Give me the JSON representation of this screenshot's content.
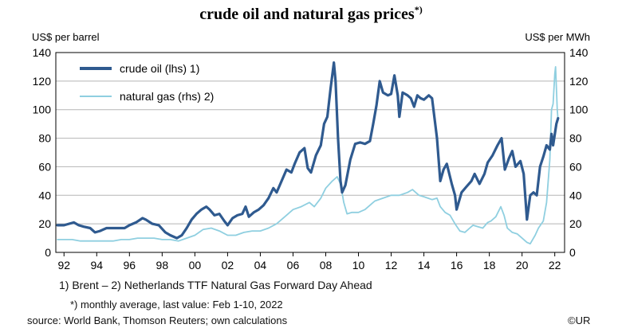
{
  "chart_data": {
    "type": "line",
    "title": "crude oil and natural gas prices",
    "title_superscript": "*)",
    "ylabel_left": "US$ per barrel",
    "ylabel_right": "US$ per MWh",
    "xlim": [
      1991.5,
      2022.6
    ],
    "ylim": [
      0,
      140
    ],
    "y2lim": [
      0,
      140
    ],
    "xticks": [
      {
        "value": 1992,
        "label": "92"
      },
      {
        "value": 1994,
        "label": "94"
      },
      {
        "value": 1996,
        "label": "96"
      },
      {
        "value": 1998,
        "label": "98"
      },
      {
        "value": 2000,
        "label": "00"
      },
      {
        "value": 2002,
        "label": "02"
      },
      {
        "value": 2004,
        "label": "04"
      },
      {
        "value": 2006,
        "label": "06"
      },
      {
        "value": 2008,
        "label": "08"
      },
      {
        "value": 2010,
        "label": "10"
      },
      {
        "value": 2012,
        "label": "12"
      },
      {
        "value": 2014,
        "label": "14"
      },
      {
        "value": 2016,
        "label": "16"
      },
      {
        "value": 2018,
        "label": "18"
      },
      {
        "value": 2020,
        "label": "20"
      },
      {
        "value": 2022,
        "label": "22"
      }
    ],
    "yticks": [
      0,
      20,
      40,
      60,
      80,
      100,
      120,
      140
    ],
    "grid": "horizontal",
    "legend_position": "top-left",
    "series": [
      {
        "name": "crude oil (lhs) 1)",
        "axis": "left",
        "color": "#2f5a8f",
        "points": [
          [
            1991.6,
            19
          ],
          [
            1992.0,
            19
          ],
          [
            1992.3,
            20
          ],
          [
            1992.6,
            21
          ],
          [
            1992.9,
            19
          ],
          [
            1993.2,
            18
          ],
          [
            1993.6,
            17
          ],
          [
            1993.9,
            14
          ],
          [
            1994.2,
            15
          ],
          [
            1994.6,
            17
          ],
          [
            1994.9,
            17
          ],
          [
            1995.3,
            17
          ],
          [
            1995.7,
            17
          ],
          [
            1996.0,
            19
          ],
          [
            1996.4,
            21
          ],
          [
            1996.8,
            24
          ],
          [
            1997.0,
            23
          ],
          [
            1997.4,
            20
          ],
          [
            1997.8,
            19
          ],
          [
            1998.2,
            14
          ],
          [
            1998.5,
            12
          ],
          [
            1998.9,
            10
          ],
          [
            1999.2,
            12
          ],
          [
            1999.5,
            17
          ],
          [
            1999.8,
            23
          ],
          [
            2000.1,
            27
          ],
          [
            2000.4,
            30
          ],
          [
            2000.7,
            32
          ],
          [
            2000.9,
            30
          ],
          [
            2001.2,
            26
          ],
          [
            2001.5,
            27
          ],
          [
            2001.8,
            22
          ],
          [
            2002.0,
            19
          ],
          [
            2002.3,
            24
          ],
          [
            2002.6,
            26
          ],
          [
            2002.9,
            27
          ],
          [
            2003.1,
            32
          ],
          [
            2003.3,
            25
          ],
          [
            2003.6,
            28
          ],
          [
            2003.9,
            30
          ],
          [
            2004.2,
            33
          ],
          [
            2004.5,
            38
          ],
          [
            2004.8,
            45
          ],
          [
            2005.0,
            42
          ],
          [
            2005.3,
            50
          ],
          [
            2005.6,
            58
          ],
          [
            2005.9,
            56
          ],
          [
            2006.1,
            62
          ],
          [
            2006.4,
            70
          ],
          [
            2006.7,
            73
          ],
          [
            2006.9,
            59
          ],
          [
            2007.1,
            56
          ],
          [
            2007.4,
            68
          ],
          [
            2007.7,
            75
          ],
          [
            2007.9,
            90
          ],
          [
            2008.1,
            95
          ],
          [
            2008.3,
            115
          ],
          [
            2008.5,
            133
          ],
          [
            2008.6,
            120
          ],
          [
            2008.75,
            80
          ],
          [
            2008.9,
            50
          ],
          [
            2009.0,
            42
          ],
          [
            2009.2,
            47
          ],
          [
            2009.5,
            65
          ],
          [
            2009.8,
            76
          ],
          [
            2010.1,
            77
          ],
          [
            2010.4,
            76
          ],
          [
            2010.7,
            78
          ],
          [
            2010.9,
            90
          ],
          [
            2011.1,
            103
          ],
          [
            2011.3,
            120
          ],
          [
            2011.5,
            112
          ],
          [
            2011.8,
            110
          ],
          [
            2012.0,
            111
          ],
          [
            2012.2,
            124
          ],
          [
            2012.4,
            110
          ],
          [
            2012.5,
            95
          ],
          [
            2012.7,
            112
          ],
          [
            2013.0,
            110
          ],
          [
            2013.2,
            108
          ],
          [
            2013.4,
            102
          ],
          [
            2013.6,
            110
          ],
          [
            2013.8,
            108
          ],
          [
            2014.0,
            107
          ],
          [
            2014.3,
            110
          ],
          [
            2014.5,
            108
          ],
          [
            2014.8,
            80
          ],
          [
            2015.0,
            50
          ],
          [
            2015.2,
            58
          ],
          [
            2015.4,
            62
          ],
          [
            2015.7,
            48
          ],
          [
            2015.9,
            40
          ],
          [
            2016.0,
            30
          ],
          [
            2016.3,
            42
          ],
          [
            2016.6,
            46
          ],
          [
            2016.9,
            50
          ],
          [
            2017.1,
            55
          ],
          [
            2017.4,
            48
          ],
          [
            2017.7,
            55
          ],
          [
            2017.9,
            63
          ],
          [
            2018.2,
            68
          ],
          [
            2018.5,
            75
          ],
          [
            2018.75,
            80
          ],
          [
            2018.95,
            58
          ],
          [
            2019.2,
            66
          ],
          [
            2019.4,
            71
          ],
          [
            2019.6,
            60
          ],
          [
            2019.9,
            64
          ],
          [
            2020.1,
            55
          ],
          [
            2020.3,
            23
          ],
          [
            2020.5,
            40
          ],
          [
            2020.7,
            42
          ],
          [
            2020.9,
            40
          ],
          [
            2021.1,
            60
          ],
          [
            2021.3,
            67
          ],
          [
            2021.5,
            75
          ],
          [
            2021.7,
            72
          ],
          [
            2021.8,
            83
          ],
          [
            2021.9,
            75
          ],
          [
            2022.1,
            90
          ],
          [
            2022.2,
            94
          ]
        ]
      },
      {
        "name": "natural gas (rhs) 2)",
        "axis": "right",
        "color": "#8fcfe0",
        "points": [
          [
            1991.6,
            9
          ],
          [
            1992.0,
            9
          ],
          [
            1992.5,
            9
          ],
          [
            1993.0,
            8
          ],
          [
            1993.5,
            8
          ],
          [
            1994.0,
            8
          ],
          [
            1994.5,
            8
          ],
          [
            1995.0,
            8
          ],
          [
            1995.5,
            9
          ],
          [
            1996.0,
            9
          ],
          [
            1996.5,
            10
          ],
          [
            1997.0,
            10
          ],
          [
            1997.5,
            10
          ],
          [
            1998.0,
            9
          ],
          [
            1998.5,
            9
          ],
          [
            1999.0,
            8
          ],
          [
            1999.5,
            10
          ],
          [
            2000.0,
            12
          ],
          [
            2000.5,
            16
          ],
          [
            2001.0,
            17
          ],
          [
            2001.5,
            15
          ],
          [
            2002.0,
            12
          ],
          [
            2002.5,
            12
          ],
          [
            2003.0,
            14
          ],
          [
            2003.5,
            15
          ],
          [
            2004.0,
            15
          ],
          [
            2004.5,
            17
          ],
          [
            2005.0,
            20
          ],
          [
            2005.5,
            25
          ],
          [
            2006.0,
            30
          ],
          [
            2006.5,
            32
          ],
          [
            2007.0,
            35
          ],
          [
            2007.3,
            32
          ],
          [
            2007.7,
            38
          ],
          [
            2008.0,
            45
          ],
          [
            2008.4,
            50
          ],
          [
            2008.7,
            53
          ],
          [
            2008.9,
            48
          ],
          [
            2009.1,
            35
          ],
          [
            2009.3,
            27
          ],
          [
            2009.6,
            28
          ],
          [
            2010.0,
            28
          ],
          [
            2010.4,
            30
          ],
          [
            2010.7,
            33
          ],
          [
            2011.0,
            36
          ],
          [
            2011.5,
            38
          ],
          [
            2012.0,
            40
          ],
          [
            2012.5,
            40
          ],
          [
            2013.0,
            42
          ],
          [
            2013.3,
            44
          ],
          [
            2013.7,
            40
          ],
          [
            2014.0,
            39
          ],
          [
            2014.5,
            37
          ],
          [
            2014.8,
            38
          ],
          [
            2015.0,
            32
          ],
          [
            2015.3,
            28
          ],
          [
            2015.6,
            26
          ],
          [
            2015.9,
            20
          ],
          [
            2016.2,
            15
          ],
          [
            2016.5,
            14
          ],
          [
            2016.8,
            17
          ],
          [
            2017.0,
            19
          ],
          [
            2017.3,
            18
          ],
          [
            2017.6,
            17
          ],
          [
            2017.9,
            21
          ],
          [
            2018.1,
            22
          ],
          [
            2018.4,
            25
          ],
          [
            2018.7,
            32
          ],
          [
            2018.9,
            26
          ],
          [
            2019.1,
            17
          ],
          [
            2019.4,
            14
          ],
          [
            2019.7,
            13
          ],
          [
            2020.0,
            10
          ],
          [
            2020.3,
            7
          ],
          [
            2020.5,
            6
          ],
          [
            2020.8,
            12
          ],
          [
            2021.0,
            17
          ],
          [
            2021.3,
            22
          ],
          [
            2021.5,
            35
          ],
          [
            2021.7,
            65
          ],
          [
            2021.8,
            100
          ],
          [
            2021.9,
            104
          ],
          [
            2022.0,
            125
          ],
          [
            2022.05,
            130
          ],
          [
            2022.15,
            100
          ],
          [
            2022.2,
            93
          ]
        ]
      }
    ]
  },
  "footnotes": {
    "series_note": "1) Brent  –  2) Netherlands TTF Natural Gas Forward Day Ahead",
    "monthly_note": "*) monthly average, last value: Feb 1-10, 2022",
    "source": "source: World Bank, Thomson Reuters; own calculations",
    "copyright": "©UR"
  }
}
